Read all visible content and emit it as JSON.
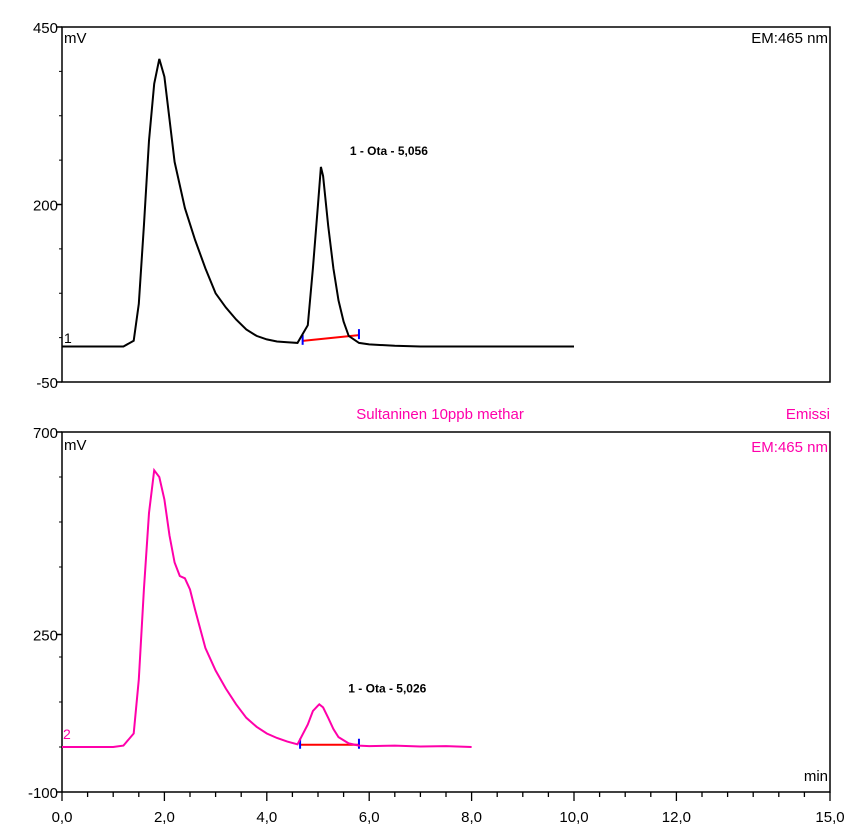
{
  "chart_data": [
    {
      "type": "line",
      "panel_index": "1",
      "ylabel": "mV",
      "corner_label": "EM:465 nm",
      "ylim": [
        -50,
        450
      ],
      "yticks": [
        -50,
        200,
        450
      ],
      "xlim": [
        0,
        15
      ],
      "series": [
        {
          "color": "#000000",
          "x": [
            0.0,
            1.2,
            1.4,
            1.5,
            1.6,
            1.7,
            1.8,
            1.9,
            2.0,
            2.1,
            2.2,
            2.4,
            2.6,
            2.8,
            3.0,
            3.2,
            3.4,
            3.6,
            3.8,
            4.0,
            4.2,
            4.4,
            4.6,
            4.8,
            4.9,
            5.0,
            5.056,
            5.1,
            5.2,
            5.3,
            5.4,
            5.5,
            5.6,
            5.8,
            6.0,
            6.5,
            7.0,
            7.5,
            8.0,
            9.0,
            10.0
          ],
          "y": [
            0,
            0,
            8,
            60,
            170,
            290,
            370,
            405,
            380,
            320,
            260,
            195,
            150,
            110,
            75,
            55,
            38,
            24,
            15,
            10,
            7,
            6,
            5,
            30,
            110,
            200,
            253,
            240,
            170,
            110,
            65,
            35,
            15,
            5,
            3,
            1,
            0,
            0,
            0,
            0,
            0
          ]
        }
      ],
      "peak": {
        "label": "1 - Ota - 5,056",
        "x": 5.056,
        "y": 253
      },
      "baseline": {
        "color": "#ff0000",
        "x": [
          4.7,
          5.8
        ],
        "y": [
          8,
          16
        ]
      },
      "integration_marks": {
        "color": "#0000ff",
        "x": [
          4.7,
          5.8
        ]
      }
    },
    {
      "type": "line",
      "panel_index": "2",
      "title": "Sultaninen 10ppb methar",
      "title_right": "Emissi",
      "ylabel": "mV",
      "corner_label": "EM:465 nm",
      "ylim": [
        -100,
        700
      ],
      "yticks": [
        -100,
        250,
        700
      ],
      "xlabel": "min",
      "xlim": [
        0,
        15
      ],
      "xticks": [
        0,
        2,
        4,
        6,
        8,
        10,
        12,
        15
      ],
      "xtick_labels": [
        "0,0",
        "2,0",
        "4,0",
        "6,0",
        "8,0",
        "10,0",
        "12,0",
        "15,0"
      ],
      "series": [
        {
          "color": "#ff00aa",
          "x": [
            0.0,
            1.0,
            1.2,
            1.4,
            1.5,
            1.6,
            1.7,
            1.8,
            1.9,
            2.0,
            2.1,
            2.2,
            2.3,
            2.4,
            2.5,
            2.6,
            2.8,
            3.0,
            3.2,
            3.4,
            3.6,
            3.8,
            4.0,
            4.2,
            4.4,
            4.6,
            4.8,
            4.9,
            5.0,
            5.026,
            5.1,
            5.2,
            5.3,
            5.4,
            5.6,
            5.8,
            6.0,
            6.5,
            7.0,
            7.5,
            8.0
          ],
          "y": [
            0,
            0,
            3,
            30,
            150,
            350,
            520,
            615,
            600,
            550,
            470,
            410,
            380,
            375,
            350,
            305,
            220,
            170,
            130,
            95,
            65,
            45,
            30,
            20,
            12,
            6,
            50,
            80,
            92,
            95,
            88,
            65,
            40,
            22,
            8,
            3,
            2,
            3,
            1,
            2,
            0
          ]
        }
      ],
      "peak": {
        "label": "1 - Ota - 5,026",
        "x": 5.026,
        "y": 95
      },
      "baseline": {
        "color": "#ff0000",
        "x": [
          4.65,
          5.8
        ],
        "y": [
          5,
          5
        ]
      },
      "integration_marks": {
        "color": "#0000ff",
        "x": [
          4.65,
          5.8
        ]
      }
    }
  ]
}
